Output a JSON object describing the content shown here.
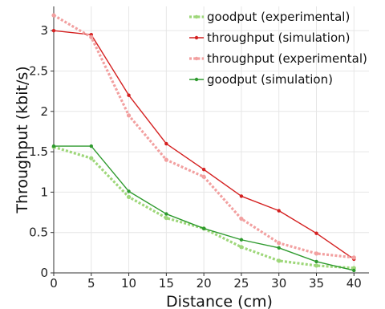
{
  "chart_data": {
    "type": "line",
    "title": "",
    "xlabel": "Distance (cm)",
    "ylabel": "Throughput (kbit/s)",
    "xlim": [
      0,
      42
    ],
    "ylim": [
      0,
      3.3
    ],
    "x_ticks": [
      0,
      5,
      10,
      15,
      20,
      25,
      30,
      35,
      40
    ],
    "y_ticks": [
      0,
      0.5,
      1,
      1.5,
      2,
      2.5,
      3
    ],
    "x_tick_labels": [
      "0",
      "5",
      "10",
      "15",
      "20",
      "25",
      "30",
      "35",
      "40"
    ],
    "y_tick_labels": [
      "0",
      "0.5",
      "1",
      "1.5",
      "2",
      "2.5",
      "3"
    ],
    "grid": true,
    "legend_position": "top-right",
    "series": [
      {
        "name": "goodput (experimental)",
        "color": "#9ed77a",
        "style": "dotted",
        "x": [
          0,
          5,
          10,
          15,
          20,
          25,
          30,
          35,
          40
        ],
        "y": [
          1.56,
          1.42,
          0.94,
          0.68,
          0.55,
          0.32,
          0.15,
          0.09,
          0.06
        ]
      },
      {
        "name": "throughput (simulation)",
        "color": "#d42020",
        "style": "solid",
        "x": [
          0,
          5,
          10,
          15,
          20,
          25,
          30,
          35,
          40
        ],
        "y": [
          3.0,
          2.95,
          2.2,
          1.6,
          1.28,
          0.95,
          0.77,
          0.49,
          0.17
        ]
      },
      {
        "name": "throughput (experimental)",
        "color": "#f2a0a0",
        "style": "dotted",
        "x": [
          0,
          5,
          10,
          15,
          20,
          25,
          30,
          35,
          40
        ],
        "y": [
          3.19,
          2.92,
          1.95,
          1.4,
          1.19,
          0.67,
          0.37,
          0.24,
          0.19
        ]
      },
      {
        "name": "goodput (simulation)",
        "color": "#2e9a2e",
        "style": "solid",
        "x": [
          0,
          5,
          10,
          15,
          20,
          25,
          30,
          35,
          40
        ],
        "y": [
          1.57,
          1.57,
          1.01,
          0.73,
          0.55,
          0.41,
          0.31,
          0.14,
          0.03
        ]
      }
    ]
  }
}
